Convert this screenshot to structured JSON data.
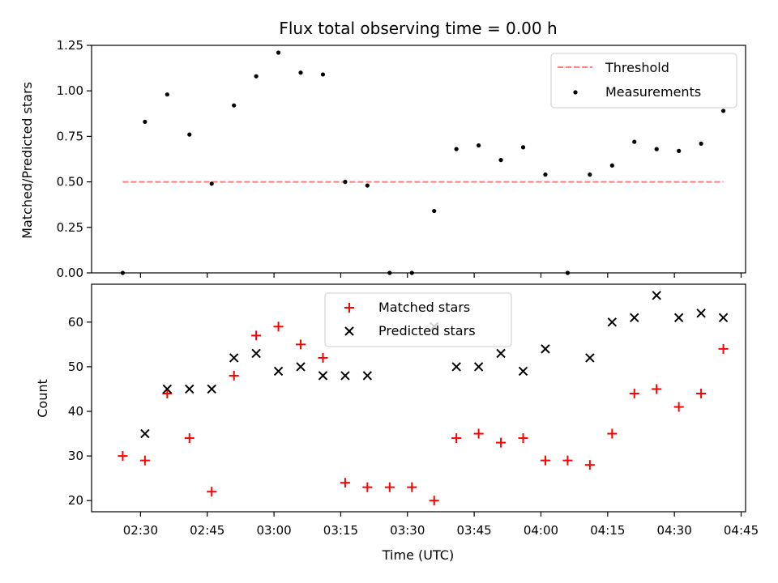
{
  "chart_data": [
    {
      "type": "scatter",
      "title": "Flux total observing time = 0.00 h",
      "xlabel": "",
      "ylabel": "Matched/Predicted stars",
      "xlim": [
        "02:19",
        "04:46"
      ],
      "ylim": [
        0,
        1.25
      ],
      "yticks": [
        "0.00",
        "0.25",
        "0.50",
        "0.75",
        "1.00",
        "1.25"
      ],
      "legend_position": "top-right",
      "threshold": {
        "name": "Threshold",
        "value": 0.5,
        "x_start": "02:26",
        "x_end": "04:41",
        "color": "#ff7f7f"
      },
      "series": [
        {
          "name": "Measurements",
          "color": "#000000",
          "marker": "dot",
          "x": [
            "02:26",
            "02:31",
            "02:36",
            "02:41",
            "02:46",
            "02:51",
            "02:56",
            "03:01",
            "03:06",
            "03:11",
            "03:16",
            "03:21",
            "03:26",
            "03:31",
            "03:36",
            "03:41",
            "03:46",
            "03:51",
            "03:56",
            "04:01",
            "04:06",
            "04:11",
            "04:16",
            "04:21",
            "04:26",
            "04:31",
            "04:36",
            "04:41"
          ],
          "y": [
            0.0,
            0.83,
            0.98,
            0.76,
            0.49,
            0.92,
            1.08,
            1.21,
            1.1,
            1.09,
            0.5,
            0.48,
            0.0,
            0.0,
            0.34,
            0.68,
            0.7,
            0.62,
            0.69,
            0.54,
            0.0,
            0.54,
            0.59,
            0.72,
            0.68,
            0.67,
            0.71,
            0.89
          ]
        }
      ]
    },
    {
      "type": "scatter",
      "title": "",
      "xlabel": "Time (UTC)",
      "ylabel": "Count",
      "xlim": [
        "02:19",
        "04:46"
      ],
      "ylim": [
        17.5,
        68.5
      ],
      "xticks": [
        "02:30",
        "02:45",
        "03:00",
        "03:15",
        "03:30",
        "03:45",
        "04:00",
        "04:15",
        "04:30",
        "04:45"
      ],
      "yticks": [
        "20",
        "30",
        "40",
        "50",
        "60"
      ],
      "legend_position": "top-center",
      "series": [
        {
          "name": "Matched stars",
          "color": "#ff0000",
          "marker": "plus",
          "x": [
            "02:26",
            "02:31",
            "02:36",
            "02:41",
            "02:46",
            "02:51",
            "02:56",
            "03:01",
            "03:06",
            "03:11",
            "03:16",
            "03:21",
            "03:26",
            "03:31",
            "03:36",
            "03:41",
            "03:46",
            "03:51",
            "03:56",
            "04:01",
            "04:06",
            "04:11",
            "04:16",
            "04:21",
            "04:26",
            "04:31",
            "04:36",
            "04:41"
          ],
          "y": [
            30,
            29,
            44,
            34,
            22,
            48,
            57,
            59,
            55,
            52,
            24,
            23,
            23,
            23,
            20,
            34,
            35,
            33,
            34,
            29,
            29,
            28,
            35,
            44,
            45,
            41,
            44,
            54
          ]
        },
        {
          "name": "Predicted stars",
          "color": "#000000",
          "marker": "x",
          "x": [
            "02:31",
            "02:36",
            "02:41",
            "02:46",
            "02:51",
            "02:56",
            "03:01",
            "03:06",
            "03:11",
            "03:16",
            "03:21",
            "03:36",
            "03:41",
            "03:46",
            "03:51",
            "03:56",
            "04:01",
            "04:11",
            "04:16",
            "04:21",
            "04:26",
            "04:31",
            "04:36",
            "04:41"
          ],
          "y": [
            35,
            45,
            45,
            45,
            52,
            53,
            49,
            50,
            48,
            48,
            48,
            59,
            50,
            50,
            53,
            49,
            54,
            52,
            60,
            61,
            66,
            61,
            62,
            61
          ]
        }
      ]
    }
  ]
}
